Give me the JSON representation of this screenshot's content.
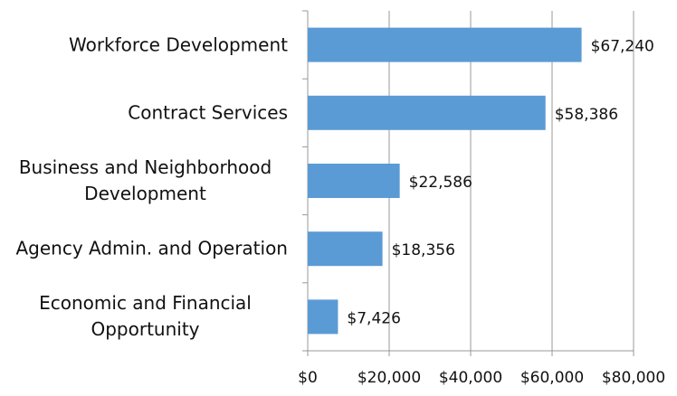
{
  "chart_data": {
    "type": "bar",
    "orientation": "horizontal",
    "categories": [
      "Workforce Development",
      "Contract Services",
      "Business and Neighborhood Development",
      "Agency Admin. and Operation",
      "Economic and Financial Opportunity"
    ],
    "values": [
      67240,
      58386,
      22586,
      18356,
      7426
    ],
    "value_labels": [
      "$67,240",
      "$58,386",
      "$22,586",
      "$18,356",
      "$7,426"
    ],
    "color": "#5b9bd5",
    "xlim": [
      0,
      80000
    ],
    "xticks": [
      {
        "value": 0,
        "label": "$0"
      },
      {
        "value": 20000,
        "label": "$20,000"
      },
      {
        "value": 40000,
        "label": "$40,000"
      },
      {
        "value": 60000,
        "label": "$60,000"
      },
      {
        "value": 80000,
        "label": "$80,000"
      }
    ],
    "grid": true
  }
}
